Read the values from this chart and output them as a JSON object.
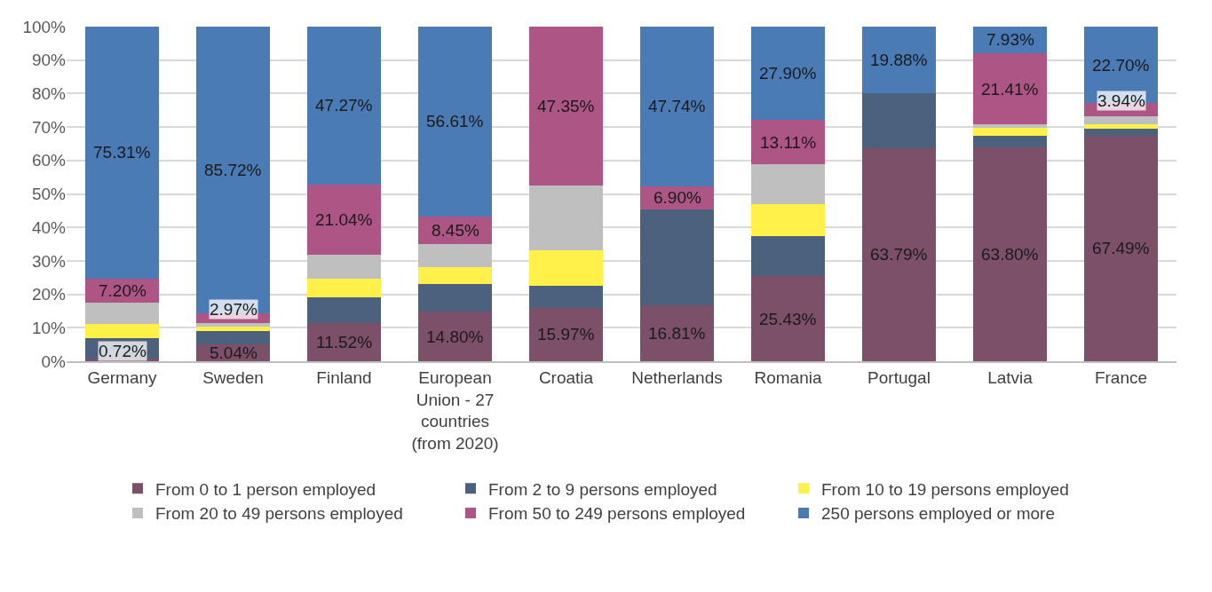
{
  "chart_data": {
    "type": "bar",
    "stacked": true,
    "categories": [
      "Germany",
      "Sweden",
      "Finland",
      "European Union - 27 countries (from 2020)",
      "Croatia",
      "Netherlands",
      "Romania",
      "Portugal",
      "Latvia",
      "France"
    ],
    "series": [
      {
        "name": "From 0 to 1 person employed",
        "color": "#7c5068",
        "values": [
          0.72,
          5.04,
          11.52,
          14.8,
          15.97,
          16.81,
          25.43,
          63.79,
          63.8,
          67.49
        ],
        "value_labels": [
          "0.72%",
          "5.04%",
          "11.52%",
          "14.80%",
          "15.97%",
          "16.81%",
          "25.43%",
          "63.79%",
          "63.80%",
          "67.49%"
        ]
      },
      {
        "name": "From 2 to 9 persons employed",
        "color": "#4b617e",
        "values": [
          6.3,
          3.9,
          7.7,
          8.2,
          6.7,
          28.6,
          12.0,
          16.3,
          3.5,
          2.1
        ],
        "value_labels": [
          null,
          null,
          null,
          null,
          null,
          null,
          null,
          null,
          null,
          null
        ]
      },
      {
        "name": "From 10 to 19 persons employed",
        "color": "#fff04a",
        "values": [
          4.1,
          1.5,
          5.5,
          5.0,
          10.5,
          0,
          9.5,
          0,
          2.4,
          1.3
        ],
        "value_labels": [
          null,
          null,
          null,
          null,
          null,
          null,
          null,
          null,
          null,
          null
        ]
      },
      {
        "name": "From 20 to 49 persons employed",
        "color": "#bfbfbf",
        "values": [
          6.4,
          0.9,
          7.0,
          6.9,
          19.4,
          0,
          12.0,
          0,
          1.0,
          2.4
        ],
        "value_labels": [
          null,
          null,
          null,
          null,
          null,
          null,
          null,
          null,
          null,
          null
        ]
      },
      {
        "name": "From 50 to 249 persons employed",
        "color": "#ad5585",
        "values": [
          7.2,
          2.97,
          21.04,
          8.45,
          47.35,
          6.9,
          13.11,
          0,
          21.41,
          3.94
        ],
        "value_labels": [
          "7.20%",
          "2.97%",
          "21.04%",
          "8.45%",
          "47.35%",
          "6.90%",
          "13.11%",
          null,
          "21.41%",
          "3.94%"
        ]
      },
      {
        "name": "250 persons employed or more",
        "color": "#4a7bb5",
        "values": [
          75.31,
          85.72,
          47.27,
          56.61,
          0,
          47.74,
          27.9,
          19.88,
          7.93,
          22.7
        ],
        "value_labels": [
          "75.31%",
          "85.72%",
          "47.27%",
          "56.61%",
          null,
          "47.74%",
          "27.90%",
          "19.88%",
          "7.93%",
          "22.70%"
        ]
      }
    ],
    "ylim": [
      0,
      100
    ],
    "yticks": [
      {
        "value": 0,
        "label": "0%"
      },
      {
        "value": 10,
        "label": "10%"
      },
      {
        "value": 20,
        "label": "20%"
      },
      {
        "value": 30,
        "label": "30%"
      },
      {
        "value": 40,
        "label": "40%"
      },
      {
        "value": 50,
        "label": "50%"
      },
      {
        "value": 60,
        "label": "60%"
      },
      {
        "value": 70,
        "label": "70%"
      },
      {
        "value": 80,
        "label": "80%"
      },
      {
        "value": 90,
        "label": "90%"
      },
      {
        "value": 100,
        "label": "100%"
      }
    ],
    "grid": "y",
    "legend": "bottom"
  }
}
